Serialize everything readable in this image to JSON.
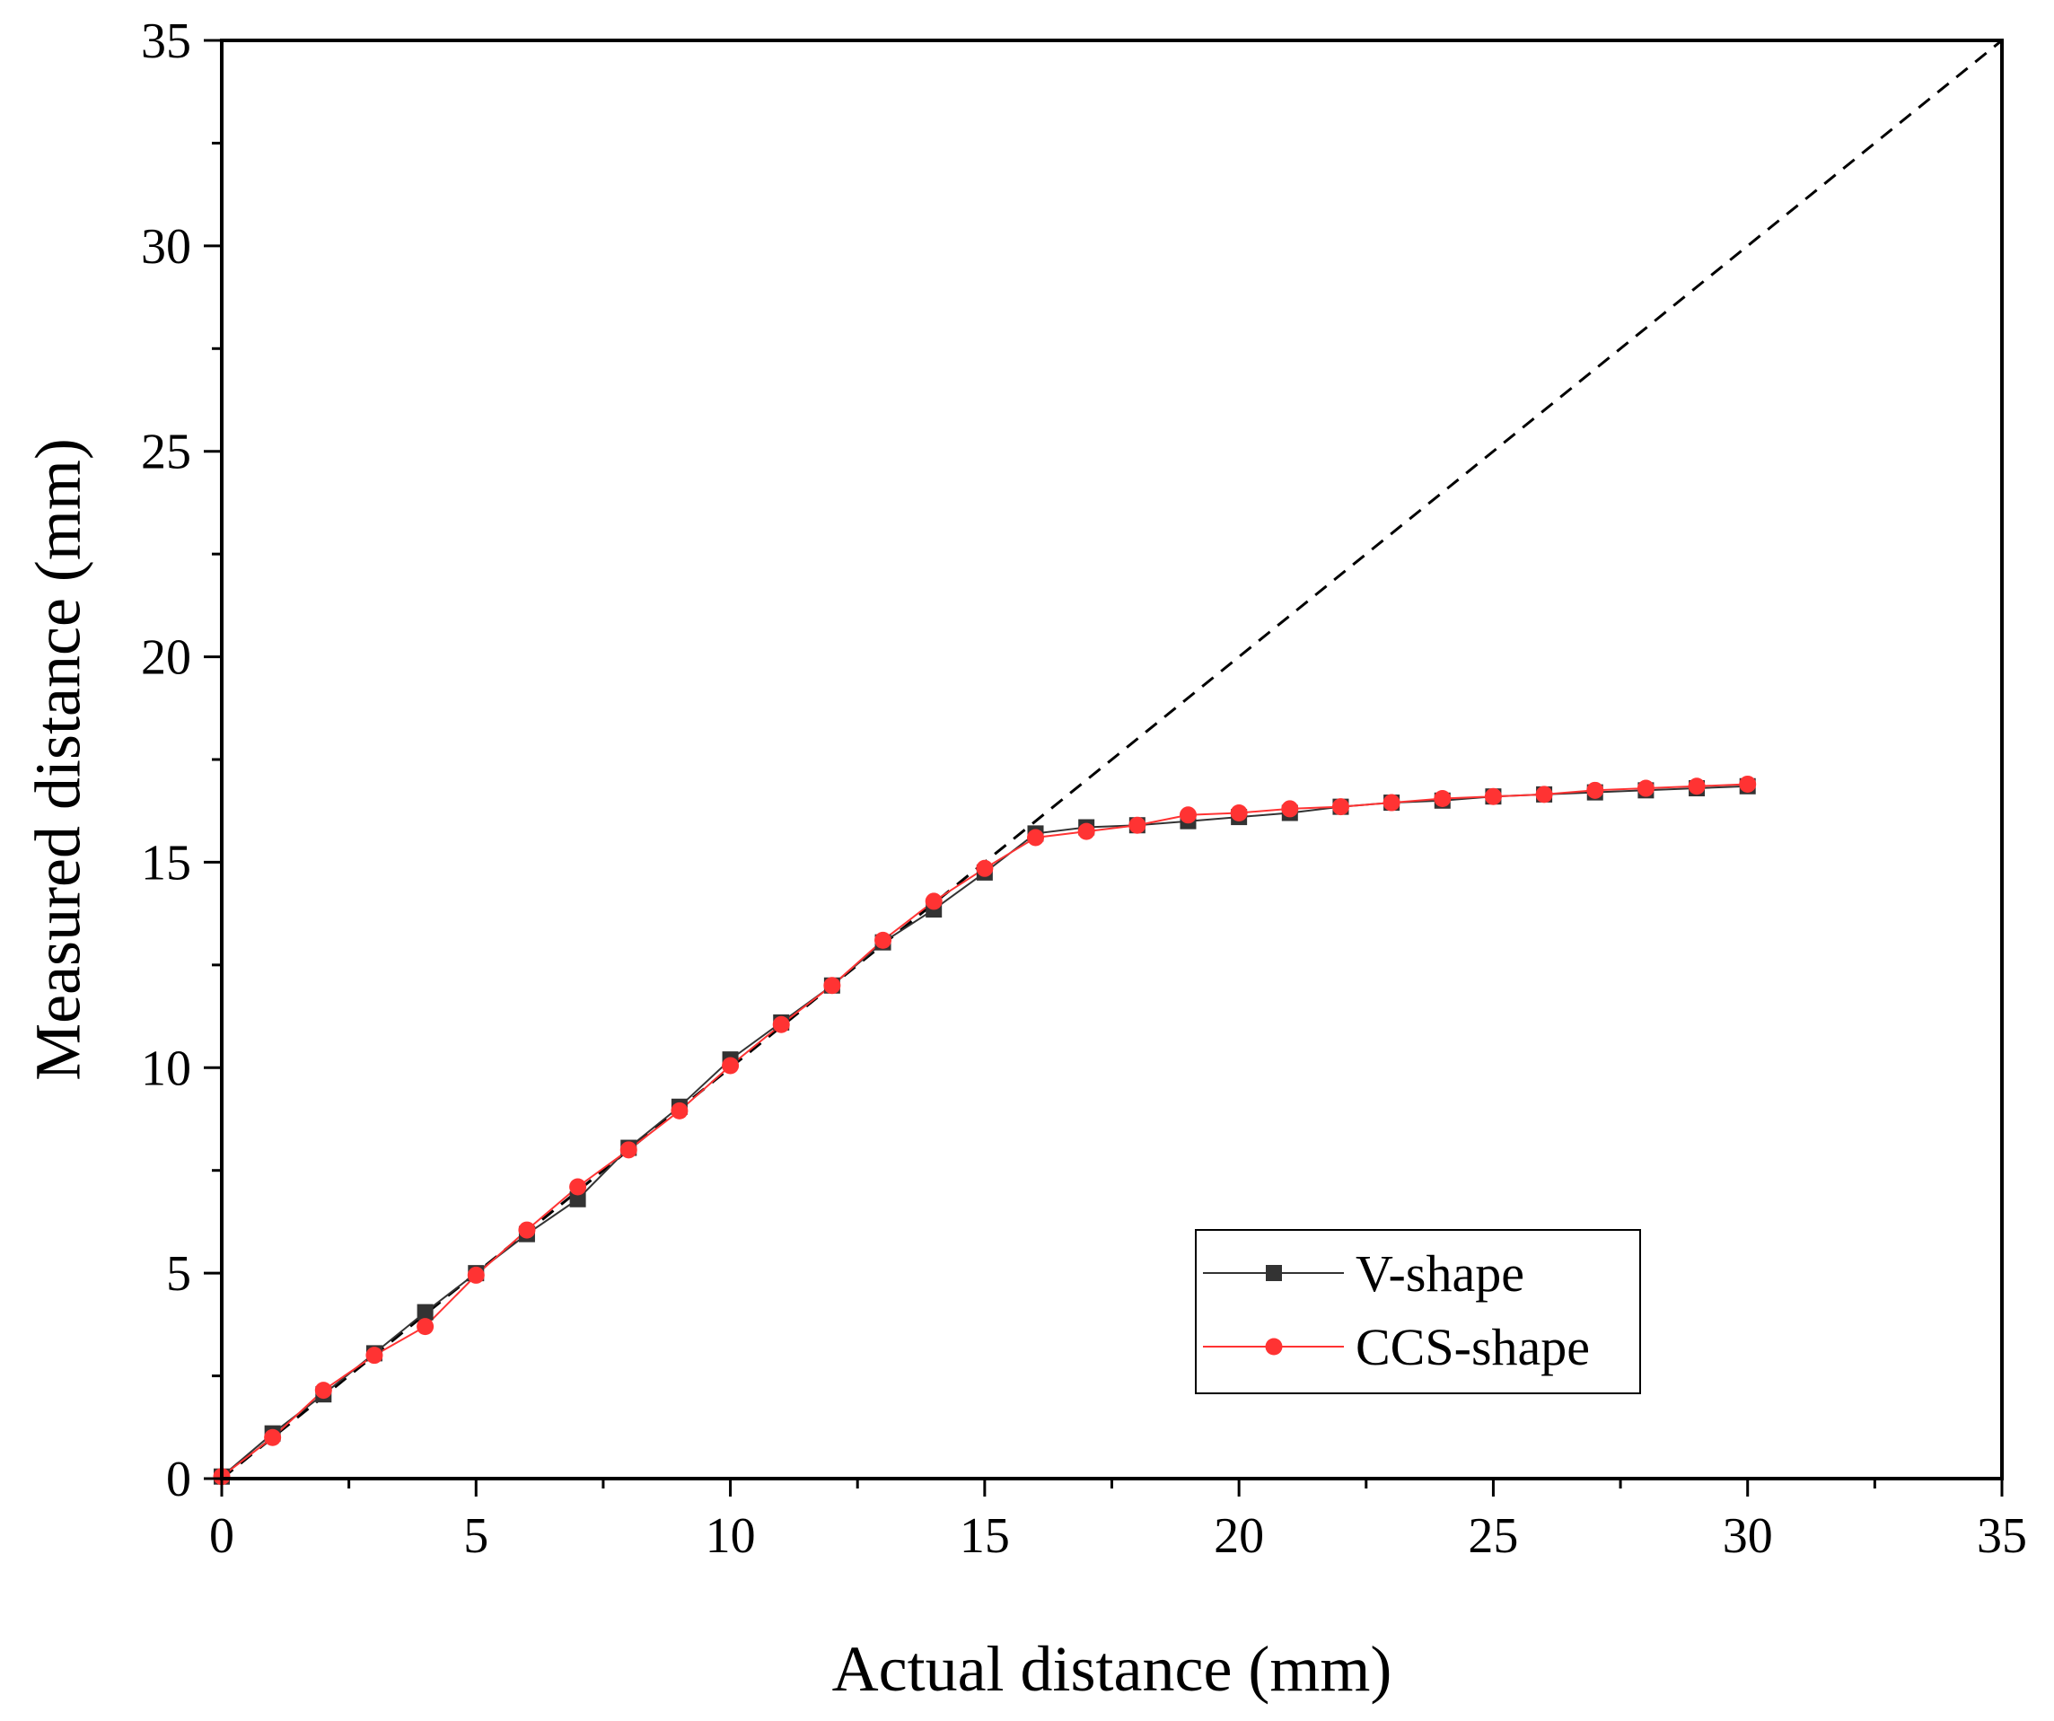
{
  "chart_data": {
    "type": "line",
    "title": "",
    "xlabel": "Actual distance (mm)",
    "ylabel": "Measured distance (mm)",
    "xlim": [
      0,
      35
    ],
    "ylim": [
      0,
      35
    ],
    "xticks": [
      0,
      5,
      10,
      15,
      20,
      25,
      30,
      35
    ],
    "yticks": [
      0,
      5,
      10,
      15,
      20,
      25,
      30,
      35
    ],
    "grid": false,
    "legend_position": "lower-right",
    "reference_line": {
      "name": "y = x",
      "x": [
        0,
        35
      ],
      "y": [
        0,
        35
      ],
      "style": "dashed",
      "color": "#000000"
    },
    "x": [
      0,
      1,
      2,
      3,
      4,
      5,
      6,
      7,
      8,
      9,
      10,
      11,
      12,
      13,
      14,
      15,
      16,
      17,
      18,
      19,
      20,
      21,
      22,
      23,
      24,
      25,
      26,
      27,
      28,
      29,
      30
    ],
    "series": [
      {
        "name": "V-shape",
        "marker": "square",
        "color": "#333333",
        "values": [
          0.05,
          1.1,
          2.05,
          3.05,
          4.05,
          5.0,
          5.95,
          6.8,
          8.05,
          9.05,
          10.2,
          11.1,
          12.0,
          13.05,
          13.85,
          14.75,
          15.7,
          15.85,
          15.9,
          16.0,
          16.1,
          16.2,
          16.35,
          16.45,
          16.5,
          16.6,
          16.65,
          16.7,
          16.75,
          16.8,
          16.85
        ]
      },
      {
        "name": "CCS-shape",
        "marker": "circle",
        "color": "#ff3333",
        "values": [
          0.05,
          1.0,
          2.15,
          3.0,
          3.7,
          4.95,
          6.05,
          7.1,
          8.0,
          8.95,
          10.05,
          11.05,
          12.0,
          13.1,
          14.05,
          14.85,
          15.6,
          15.75,
          15.9,
          16.15,
          16.2,
          16.3,
          16.35,
          16.45,
          16.55,
          16.6,
          16.65,
          16.75,
          16.8,
          16.85,
          16.9
        ]
      }
    ]
  }
}
